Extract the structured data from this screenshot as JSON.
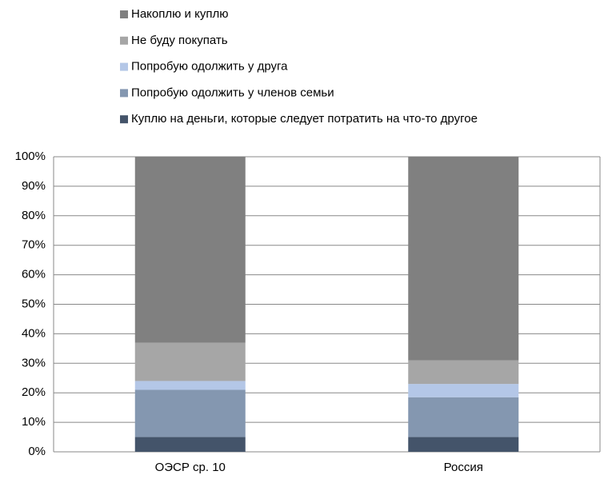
{
  "chart_data": {
    "type": "stacked_bar",
    "categories": [
      "ОЭСР ср. 10",
      "Россия"
    ],
    "series": [
      {
        "name": "Куплю на деньги, которые следует потратить на что-то другое",
        "color": "#44546a",
        "values": [
          5,
          5
        ]
      },
      {
        "name": "Попробую одолжить у членов семьи",
        "color": "#8497b0",
        "values": [
          16,
          13.5
        ]
      },
      {
        "name": "Попробую одолжить у друга",
        "color": "#b4c7e7",
        "values": [
          3,
          4.5
        ]
      },
      {
        "name": "Не буду покупать",
        "color": "#a6a6a6",
        "values": [
          13,
          8
        ]
      },
      {
        "name": "Накоплю и куплю",
        "color": "#808080",
        "values": [
          63,
          69
        ]
      }
    ],
    "ylim": [
      0,
      100
    ],
    "yticks": [
      {
        "value": 0,
        "label": "0%"
      },
      {
        "value": 10,
        "label": "10%"
      },
      {
        "value": 20,
        "label": "20%"
      },
      {
        "value": 30,
        "label": "30%"
      },
      {
        "value": 40,
        "label": "40%"
      },
      {
        "value": 50,
        "label": "50%"
      },
      {
        "value": 60,
        "label": "60%"
      },
      {
        "value": 70,
        "label": "70%"
      },
      {
        "value": 80,
        "label": "80%"
      },
      {
        "value": 90,
        "label": "90%"
      },
      {
        "value": 100,
        "label": "100%"
      }
    ],
    "grid": true
  }
}
